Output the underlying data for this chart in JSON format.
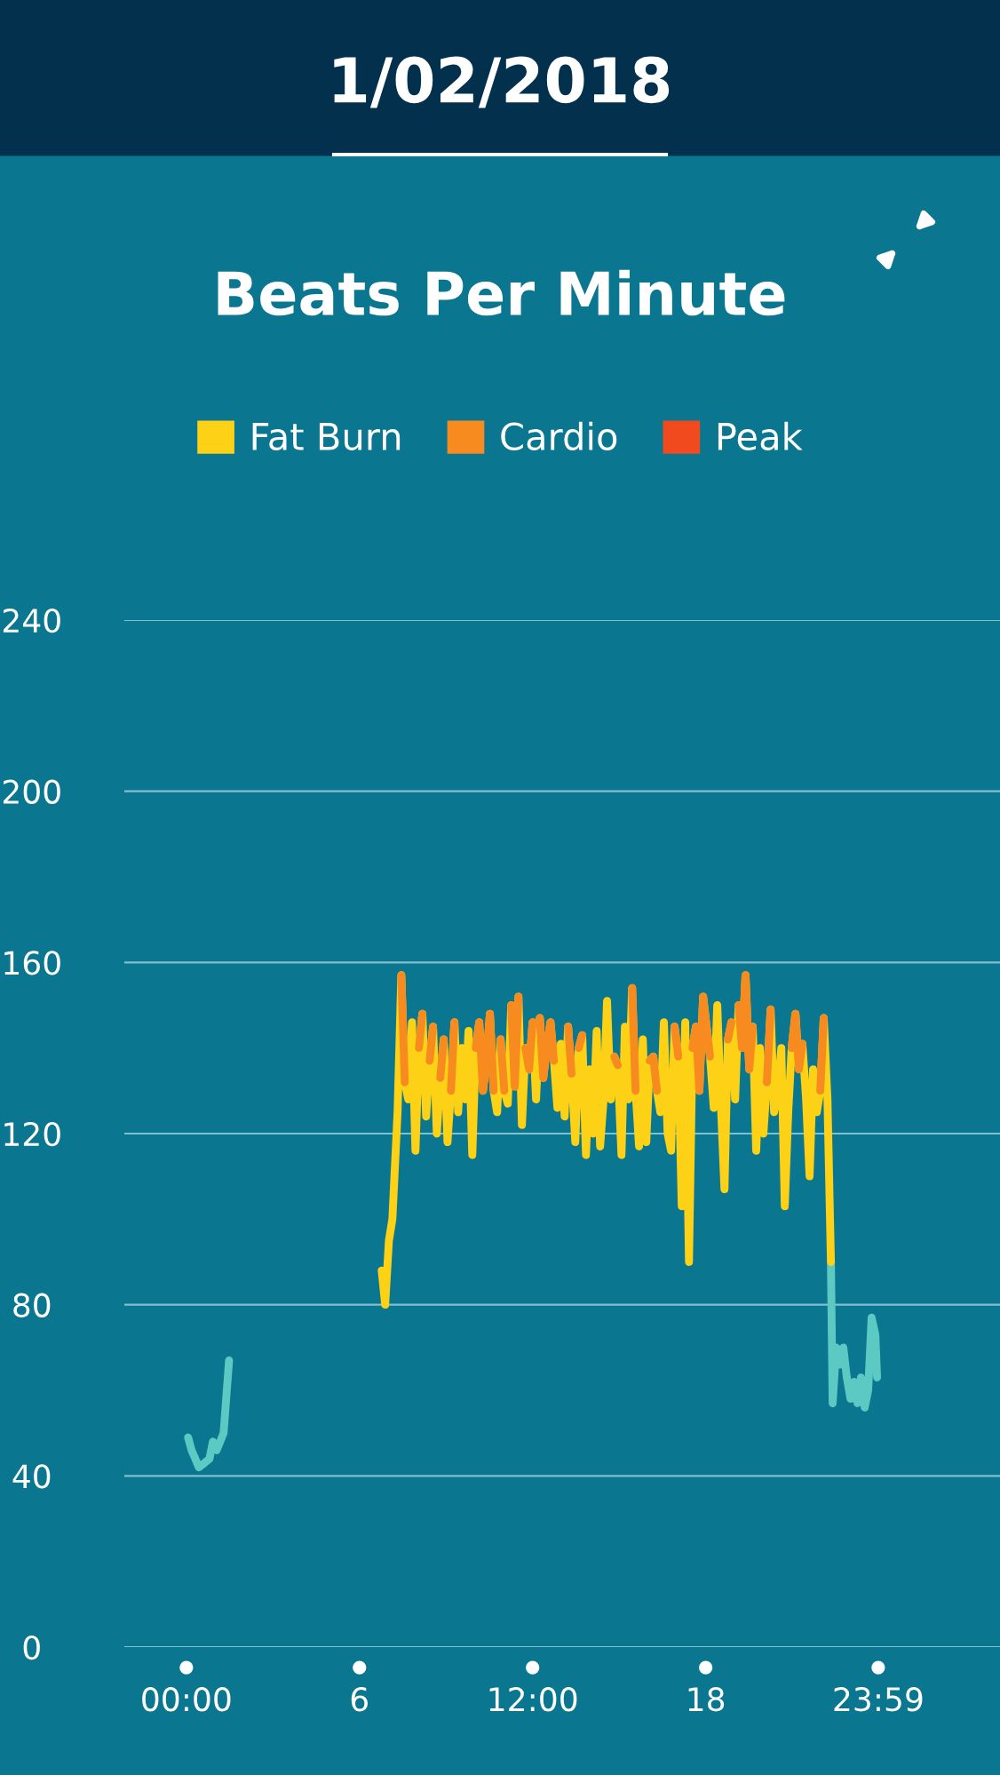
{
  "chart_data": {
    "type": "line",
    "title": "1/02/2018",
    "subtitle": "Beats Per Minute",
    "xlim": [
      -2.15,
      28.2
    ],
    "ylim": [
      0,
      240
    ],
    "yticks": [
      0,
      40,
      80,
      120,
      160,
      200,
      240
    ],
    "xticks": [
      {
        "value": 0,
        "label": "00:00"
      },
      6,
      {
        "value": 12,
        "label": "12:00"
      },
      18,
      {
        "value": 23.98,
        "label": "23:59"
      }
    ],
    "grid": "y",
    "legend": "top",
    "line_style": "solid",
    "marker": "none",
    "series": [
      {
        "color": "#5cc9c3",
        "x": [
          0.06,
          0.18,
          0.31,
          0.43,
          0.62,
          0.8,
          0.92,
          1.05,
          1.17,
          1.29,
          1.48,
          4.0,
          22.34,
          22.4,
          22.52,
          22.65,
          22.77,
          22.89,
          23.02,
          23.14,
          23.26,
          23.38,
          23.51,
          23.63,
          23.75,
          23.88,
          23.94
        ],
        "values": [
          49,
          46,
          44,
          42,
          43,
          44,
          48,
          46,
          48,
          50,
          67,
          null,
          90,
          57,
          70,
          66,
          70,
          63,
          58,
          62,
          57,
          63,
          56,
          60,
          77,
          73,
          63
        ]
      },
      {
        "name": "Fat Burn",
        "color": "#fcd116",
        "x": [
          6.77,
          6.89,
          7.02,
          7.14,
          7.32,
          7.45,
          7.57,
          7.69,
          7.82,
          7.94,
          8.06,
          8.18,
          8.31,
          8.43,
          8.55,
          8.68,
          8.8,
          8.92,
          9.05,
          9.17,
          9.29,
          9.42,
          9.54,
          9.66,
          9.78,
          9.91,
          10.03,
          10.15,
          10.28,
          10.4,
          10.52,
          10.65,
          10.77,
          10.89,
          11.02,
          11.14,
          11.26,
          11.38,
          11.51,
          11.63,
          11.75,
          11.88,
          12.0,
          12.12,
          12.25,
          12.37,
          12.49,
          12.62,
          12.74,
          12.86,
          12.98,
          13.11,
          13.23,
          13.35,
          13.48,
          13.6,
          13.72,
          13.85,
          13.97,
          14.09,
          14.22,
          14.34,
          14.46,
          14.58,
          14.71,
          14.83,
          14.95,
          15.08,
          15.2,
          15.32,
          15.45,
          15.57,
          15.69,
          15.82,
          15.94,
          16.06,
          16.18,
          16.31,
          16.43,
          16.55,
          16.68,
          16.8,
          16.92,
          17.05,
          17.17,
          17.29,
          17.42,
          17.54,
          17.66,
          17.78,
          17.91,
          18.03,
          18.15,
          18.28,
          18.4,
          18.52,
          18.65,
          18.77,
          18.89,
          19.02,
          19.14,
          19.26,
          19.38,
          19.51,
          19.63,
          19.75,
          19.88,
          20.0,
          20.12,
          20.25,
          20.37,
          20.49,
          20.62,
          20.74,
          20.86,
          20.98,
          21.11,
          21.23,
          21.35,
          21.48,
          21.6,
          21.72,
          21.85,
          21.97,
          22.09,
          22.22,
          22.34
        ],
        "values": [
          88,
          80,
          95,
          100,
          125,
          157,
          132,
          128,
          146,
          116,
          140,
          148,
          124,
          137,
          145,
          120,
          133,
          142,
          118,
          130,
          146,
          125,
          140,
          128,
          144,
          115,
          140,
          146,
          130,
          137,
          148,
          130,
          125,
          142,
          130,
          127,
          150,
          131,
          152,
          122,
          140,
          135,
          146,
          128,
          147,
          133,
          140,
          146,
          137,
          126,
          141,
          124,
          145,
          134,
          118,
          140,
          143,
          115,
          135,
          120,
          144,
          117,
          128,
          151,
          128,
          138,
          136,
          115,
          145,
          128,
          154,
          130,
          117,
          142,
          118,
          137,
          138,
          130,
          125,
          146,
          120,
          116,
          145,
          138,
          103,
          146,
          90,
          140,
          145,
          130,
          152,
          145,
          138,
          126,
          150,
          128,
          107,
          142,
          146,
          128,
          150,
          140,
          157,
          135,
          145,
          116,
          140,
          120,
          132,
          149,
          125,
          129,
          140,
          103,
          125,
          140,
          148,
          135,
          141,
          128,
          110,
          135,
          125,
          130,
          147,
          128,
          90
        ]
      },
      {
        "name": "Cardio",
        "color": "#f78b1f",
        "x": [
          7.45,
          7.57,
          7.69,
          7.82,
          7.94,
          8.06,
          8.18,
          8.31,
          8.43,
          8.55,
          8.68,
          8.8,
          8.92,
          9.05,
          9.17,
          9.29,
          9.42,
          9.54,
          9.66,
          9.78,
          9.91,
          10.03,
          10.15,
          10.28,
          10.4,
          10.52,
          10.65,
          10.77,
          10.89,
          11.02,
          11.14,
          11.26,
          11.38,
          11.51,
          11.63,
          11.75,
          11.88,
          12.0,
          12.12,
          12.25,
          12.37,
          12.49,
          12.62,
          12.74,
          12.86,
          12.98,
          13.11,
          13.23,
          13.35,
          13.48,
          13.6,
          13.72,
          13.85,
          13.97,
          14.09,
          14.22,
          14.34,
          14.46,
          14.58,
          14.71,
          14.83,
          14.95,
          15.08,
          15.2,
          15.32,
          15.45,
          15.57,
          15.69,
          15.82,
          15.94,
          16.06,
          16.18,
          16.31,
          16.43,
          16.55,
          16.68,
          16.8,
          16.92,
          17.05,
          17.17,
          17.29,
          17.42,
          17.54,
          17.66,
          17.78,
          17.91,
          18.03,
          18.15,
          18.28,
          18.4,
          18.52,
          18.65,
          18.77,
          18.89,
          19.02,
          19.14,
          19.26,
          19.38,
          19.51,
          19.63,
          19.75,
          19.88,
          20.0,
          20.12,
          20.25,
          20.37,
          20.49,
          20.62,
          20.74,
          20.86,
          20.98,
          21.11,
          21.23,
          21.35,
          21.48,
          21.6,
          21.72,
          21.85,
          21.97,
          22.09
        ],
        "values": [
          157,
          132,
          null,
          null,
          null,
          140,
          148,
          null,
          137,
          145,
          null,
          133,
          142,
          null,
          130,
          146,
          null,
          null,
          null,
          null,
          null,
          140,
          146,
          130,
          137,
          148,
          130,
          null,
          142,
          130,
          null,
          150,
          131,
          152,
          null,
          140,
          135,
          146,
          null,
          147,
          133,
          140,
          146,
          137,
          null,
          null,
          null,
          145,
          134,
          null,
          140,
          143,
          null,
          null,
          null,
          null,
          null,
          null,
          null,
          null,
          138,
          136,
          null,
          null,
          null,
          154,
          130,
          null,
          null,
          null,
          137,
          138,
          130,
          null,
          null,
          null,
          null,
          145,
          138,
          null,
          null,
          null,
          140,
          145,
          130,
          152,
          145,
          138,
          null,
          null,
          null,
          null,
          142,
          146,
          null,
          150,
          140,
          157,
          135,
          145,
          null,
          null,
          null,
          132,
          149,
          null,
          null,
          null,
          null,
          null,
          140,
          148,
          135,
          141,
          null,
          null,
          null,
          null,
          130,
          147
        ]
      },
      {
        "name": "Peak",
        "color": "#f24a1f"
      }
    ]
  }
}
